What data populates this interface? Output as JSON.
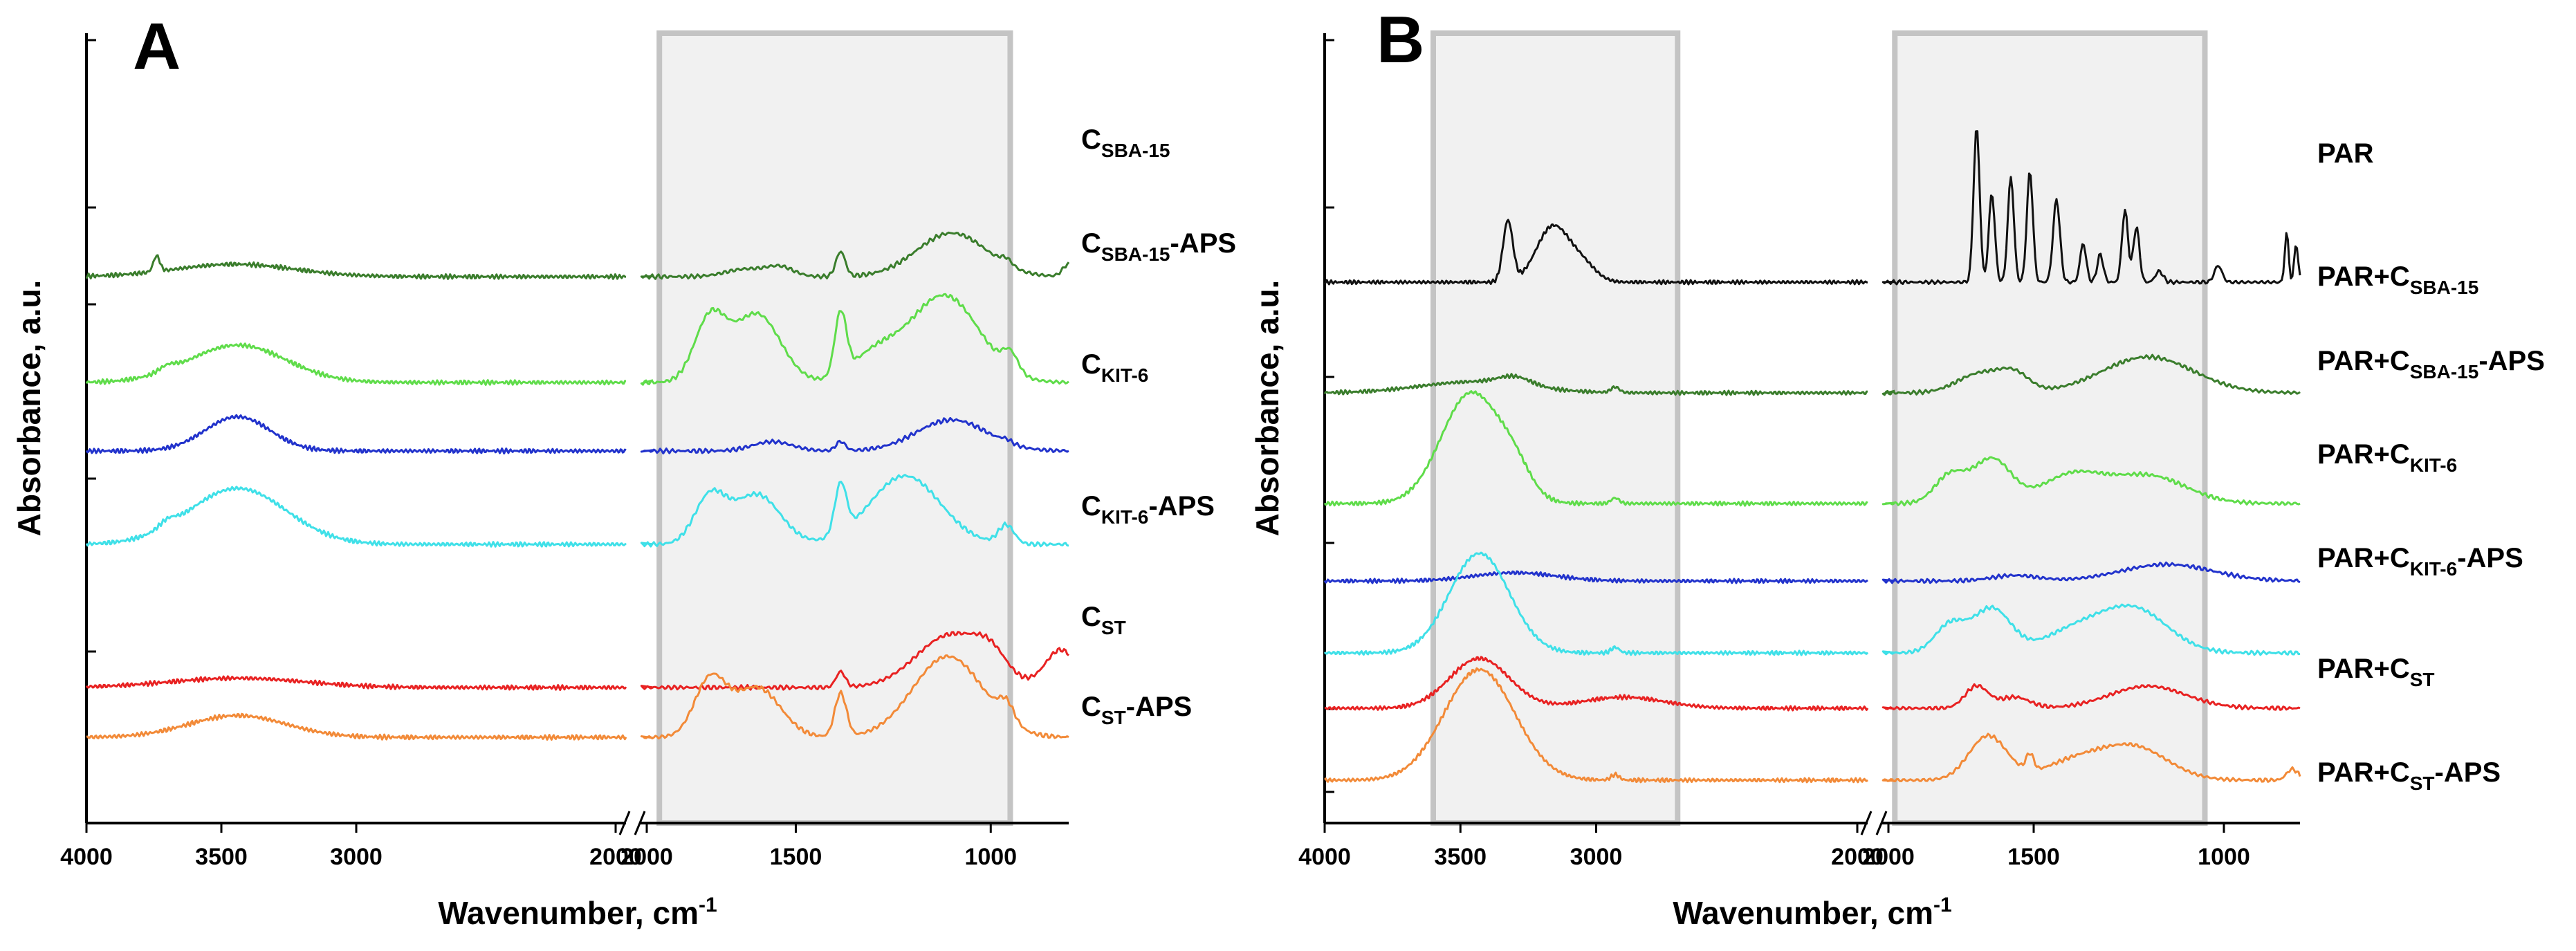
{
  "chart_data": [
    {
      "type": "line",
      "panel": "A",
      "ylabel": "Absorbance, a.u.",
      "xlabel": "Wavenumber, cm",
      "xlabel_superscript": "-1",
      "x_axis_direction": "descending",
      "x_axis_break": [
        2000,
        1900
      ],
      "x_segments": [
        [
          4000,
          2000
        ],
        [
          1900,
          800
        ]
      ],
      "x_ticks_left": [
        "4000",
        "3500",
        "3000",
        "2000"
      ],
      "x_ticks_right": [
        "2000",
        "1500",
        "1000"
      ],
      "y_tick_count": 5,
      "highlight_regions": [
        [
          1850,
          950
        ]
      ],
      "series": [
        {
          "name": "C_SBA-15",
          "label_main": "C",
          "label_sub": "SBA-15",
          "label_suffix": "",
          "color": "#3a7d2c",
          "offset": 8.0,
          "peaks": [
            [
              3740,
              0.25,
              12
            ],
            [
              3450,
              0.2,
              220
            ],
            [
              1630,
              0.12,
              50
            ],
            [
              1540,
              0.15,
              35
            ],
            [
              1385,
              0.4,
              12
            ],
            [
              1100,
              0.7,
              90
            ],
            [
              960,
              0.1,
              15
            ],
            [
              800,
              0.2,
              15
            ]
          ]
        },
        {
          "name": "C_SBA-15-APS",
          "label_main": "C",
          "label_sub": "SBA-15",
          "label_suffix": "-APS",
          "color": "#5fdc4a",
          "offset": 6.3,
          "peaks": [
            [
              3440,
              0.6,
              180
            ],
            [
              3700,
              0.08,
              30
            ],
            [
              1720,
              1.0,
              40
            ],
            [
              1600,
              1.1,
              60
            ],
            [
              1385,
              1.0,
              15
            ],
            [
              1300,
              0.4,
              60
            ],
            [
              1120,
              1.4,
              90
            ],
            [
              950,
              0.3,
              20
            ]
          ]
        },
        {
          "name": "C_KIT-6",
          "label_main": "C",
          "label_sub": "KIT-6",
          "label_suffix": "",
          "color": "#2233cc",
          "offset": 5.2,
          "peaks": [
            [
              3440,
              0.55,
              120
            ],
            [
              1560,
              0.15,
              50
            ],
            [
              1385,
              0.15,
              12
            ],
            [
              1100,
              0.5,
              90
            ],
            [
              960,
              0.05,
              15
            ]
          ]
        },
        {
          "name": "C_KIT-6-APS",
          "label_main": "C",
          "label_sub": "KIT-6",
          "label_suffix": "-APS",
          "color": "#3fe0e8",
          "offset": 3.7,
          "peaks": [
            [
              3440,
              0.9,
              180
            ],
            [
              3700,
              0.1,
              30
            ],
            [
              1720,
              0.75,
              40
            ],
            [
              1600,
              0.8,
              60
            ],
            [
              1385,
              0.8,
              15
            ],
            [
              1220,
              1.1,
              90
            ],
            [
              960,
              0.3,
              20
            ]
          ]
        },
        {
          "name": "C_ST",
          "label_main": "C",
          "label_sub": "ST",
          "label_suffix": "",
          "color": "#e82222",
          "offset": 1.4,
          "peaks": [
            [
              3440,
              0.15,
              250
            ],
            [
              1385,
              0.25,
              12
            ],
            [
              1100,
              0.85,
              90
            ],
            [
              1000,
              0.3,
              40
            ],
            [
              820,
              0.6,
              40
            ]
          ]
        },
        {
          "name": "C_ST-APS",
          "label_main": "C",
          "label_sub": "ST",
          "label_suffix": "-APS",
          "color": "#f28a38",
          "offset": 0.6,
          "peaks": [
            [
              3440,
              0.35,
              180
            ],
            [
              1720,
              0.9,
              40
            ],
            [
              1600,
              0.8,
              60
            ],
            [
              1385,
              0.7,
              15
            ],
            [
              1110,
              1.3,
              90
            ],
            [
              960,
              0.3,
              20
            ]
          ]
        }
      ]
    },
    {
      "type": "line",
      "panel": "B",
      "ylabel": "Absorbance, a.u.",
      "xlabel": "Wavenumber, cm",
      "xlabel_superscript": "-1",
      "x_axis_direction": "descending",
      "x_axis_break": [
        2000,
        1900
      ],
      "x_segments": [
        [
          4000,
          2000
        ],
        [
          1900,
          800
        ]
      ],
      "x_ticks_left": [
        "4000",
        "3500",
        "3000",
        "2000"
      ],
      "x_ticks_right": [
        "2000",
        "1500",
        "1000"
      ],
      "y_tick_count": 5,
      "highlight_regions": [
        [
          3600,
          2700
        ],
        [
          1900,
          1050
        ]
      ],
      "series": [
        {
          "name": "PAR",
          "label_main": "PAR",
          "label_sub": "",
          "label_suffix": "",
          "color": "#111111",
          "offset": 9.0,
          "peaks": [
            [
              3325,
              1.1,
              18
            ],
            [
              3160,
              1.0,
              60
            ],
            [
              3050,
              0.3,
              50
            ],
            [
              1650,
              2.8,
              8
            ],
            [
              1610,
              1.6,
              8
            ],
            [
              1560,
              1.9,
              8
            ],
            [
              1510,
              2.0,
              8
            ],
            [
              1440,
              1.5,
              9
            ],
            [
              1370,
              0.7,
              8
            ],
            [
              1325,
              0.5,
              8
            ],
            [
              1260,
              1.3,
              8
            ],
            [
              1230,
              1.0,
              8
            ],
            [
              1170,
              0.2,
              10
            ],
            [
              1015,
              0.3,
              10
            ],
            [
              835,
              0.9,
              5
            ],
            [
              810,
              0.7,
              5
            ]
          ]
        },
        {
          "name": "PAR+C_SBA-15",
          "label_main": "PAR+C",
          "label_sub": "SBA-15",
          "label_suffix": "",
          "color": "#3a7d2c",
          "offset": 7.0,
          "peaks": [
            [
              3450,
              0.2,
              200
            ],
            [
              3300,
              0.15,
              60
            ],
            [
              2930,
              0.1,
              15
            ],
            [
              1640,
              0.35,
              60
            ],
            [
              1550,
              0.3,
              40
            ],
            [
              1200,
              0.65,
              120
            ]
          ]
        },
        {
          "name": "PAR+C_SBA-15-APS",
          "label_main": "PAR+C",
          "label_sub": "SBA-15",
          "label_suffix": "-APS",
          "color": "#5fdc4a",
          "offset": 5.0,
          "peaks": [
            [
              3460,
              2.0,
              110
            ],
            [
              3300,
              0.4,
              60
            ],
            [
              2930,
              0.1,
              15
            ],
            [
              1720,
              0.5,
              40
            ],
            [
              1610,
              0.8,
              50
            ],
            [
              1400,
              0.5,
              80
            ],
            [
              1200,
              0.5,
              100
            ]
          ]
        },
        {
          "name": "PAR+C_KIT-6",
          "label_main": "PAR+C",
          "label_sub": "KIT-6",
          "label_suffix": "",
          "color": "#2233cc",
          "offset": 3.6,
          "peaks": [
            [
              3300,
              0.15,
              150
            ],
            [
              1550,
              0.1,
              60
            ],
            [
              1150,
              0.3,
              120
            ]
          ]
        },
        {
          "name": "PAR+C_KIT-6-APS",
          "label_main": "PAR+C",
          "label_sub": "KIT-6",
          "label_suffix": "-APS",
          "color": "#3fe0e8",
          "offset": 2.3,
          "peaks": [
            [
              3430,
              1.8,
              110
            ],
            [
              2930,
              0.1,
              15
            ],
            [
              1720,
              0.5,
              40
            ],
            [
              1610,
              0.8,
              50
            ],
            [
              1400,
              0.35,
              80
            ],
            [
              1240,
              0.8,
              90
            ]
          ]
        },
        {
          "name": "PAR+C_ST",
          "label_main": "PAR+C",
          "label_sub": "ST",
          "label_suffix": "",
          "color": "#e82222",
          "offset": 1.3,
          "peaks": [
            [
              3430,
              0.9,
              110
            ],
            [
              2900,
              0.2,
              150
            ],
            [
              1650,
              0.4,
              30
            ],
            [
              1550,
              0.2,
              40
            ],
            [
              1200,
              0.4,
              100
            ]
          ]
        },
        {
          "name": "PAR+C_ST-APS",
          "label_main": "PAR+C",
          "label_sub": "ST",
          "label_suffix": "-APS",
          "color": "#f28a38",
          "offset": 0.0,
          "peaks": [
            [
              3430,
              2.0,
              130
            ],
            [
              2930,
              0.1,
              15
            ],
            [
              1620,
              0.8,
              50
            ],
            [
              1510,
              0.3,
              10
            ],
            [
              1400,
              0.3,
              80
            ],
            [
              1240,
              0.6,
              90
            ],
            [
              820,
              0.2,
              15
            ]
          ]
        }
      ]
    }
  ]
}
